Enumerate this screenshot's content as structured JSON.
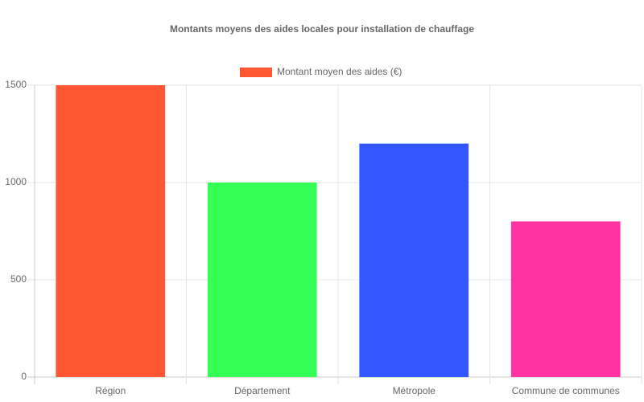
{
  "chart_data": {
    "type": "bar",
    "title": "Montants moyens des aides locales pour installation de chauffage",
    "categories": [
      "Région",
      "Département",
      "Métropole",
      "Commune de communes"
    ],
    "series": [
      {
        "name": "Montant moyen des aides (€)",
        "colors": [
          "#ff5733",
          "#33ff57",
          "#3357ff",
          "#ff33a1"
        ],
        "values": [
          1500,
          1000,
          1200,
          800
        ]
      }
    ],
    "ylim": [
      0,
      1500
    ],
    "yticks": [
      0,
      500,
      1000,
      1500
    ],
    "grid": true,
    "legend": "top"
  }
}
